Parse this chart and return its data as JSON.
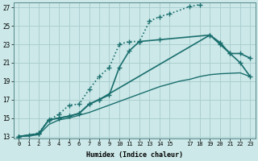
{
  "xlabel": "Humidex (Indice chaleur)",
  "bg_color": "#cce8e8",
  "grid_color": "#a8cccc",
  "line_color": "#1a6e6e",
  "xlim": [
    -0.5,
    23.5
  ],
  "ylim": [
    12.8,
    27.5
  ],
  "yticks": [
    13,
    15,
    17,
    19,
    21,
    23,
    25,
    27
  ],
  "line1": {
    "x": [
      0,
      1,
      2,
      3,
      4,
      5,
      6,
      7,
      8,
      9,
      10,
      11,
      12,
      13,
      14,
      15,
      17,
      18
    ],
    "y": [
      13,
      13.1,
      13.4,
      14.8,
      15.4,
      16.4,
      16.5,
      18.1,
      19.5,
      20.5,
      23.0,
      23.3,
      23.3,
      25.5,
      26.0,
      26.3,
      27.1,
      27.3
    ],
    "linestyle": "dotted",
    "marker": "+",
    "markersize": 4,
    "lw": 1.2
  },
  "line2": {
    "x": [
      0,
      2,
      3,
      4,
      5,
      6,
      7,
      8,
      19,
      20,
      21,
      22,
      23
    ],
    "y": [
      13,
      13.3,
      14.8,
      15.0,
      15.2,
      15.5,
      16.5,
      17.0,
      24.0,
      23.2,
      22.0,
      22.0,
      21.5
    ],
    "linestyle": "solid",
    "marker": "+",
    "markersize": 4,
    "lw": 1.2
  },
  "line3": {
    "x": [
      0,
      1,
      2,
      3,
      4,
      5,
      6,
      7,
      8,
      9,
      10,
      11,
      12,
      13,
      14,
      15,
      16,
      17,
      18,
      19,
      20,
      21,
      22,
      23
    ],
    "y": [
      13,
      13.05,
      13.2,
      14.3,
      14.8,
      15.0,
      15.3,
      15.6,
      16.0,
      16.4,
      16.8,
      17.2,
      17.6,
      18.0,
      18.4,
      18.7,
      19.0,
      19.2,
      19.5,
      19.7,
      19.8,
      19.85,
      19.9,
      19.5
    ],
    "linestyle": "solid",
    "marker": null,
    "markersize": 0,
    "lw": 1.0
  },
  "line4": {
    "x": [
      0,
      2,
      3,
      4,
      5,
      6,
      7,
      8,
      9,
      10,
      11,
      12,
      14,
      19,
      20,
      21,
      22,
      23
    ],
    "y": [
      13,
      13.3,
      14.8,
      15.0,
      15.2,
      15.5,
      16.5,
      17.0,
      17.5,
      20.5,
      22.3,
      23.3,
      23.5,
      24.0,
      23.0,
      22.0,
      21.0,
      19.5
    ],
    "linestyle": "solid",
    "marker": "+",
    "markersize": 4,
    "lw": 1.2
  }
}
